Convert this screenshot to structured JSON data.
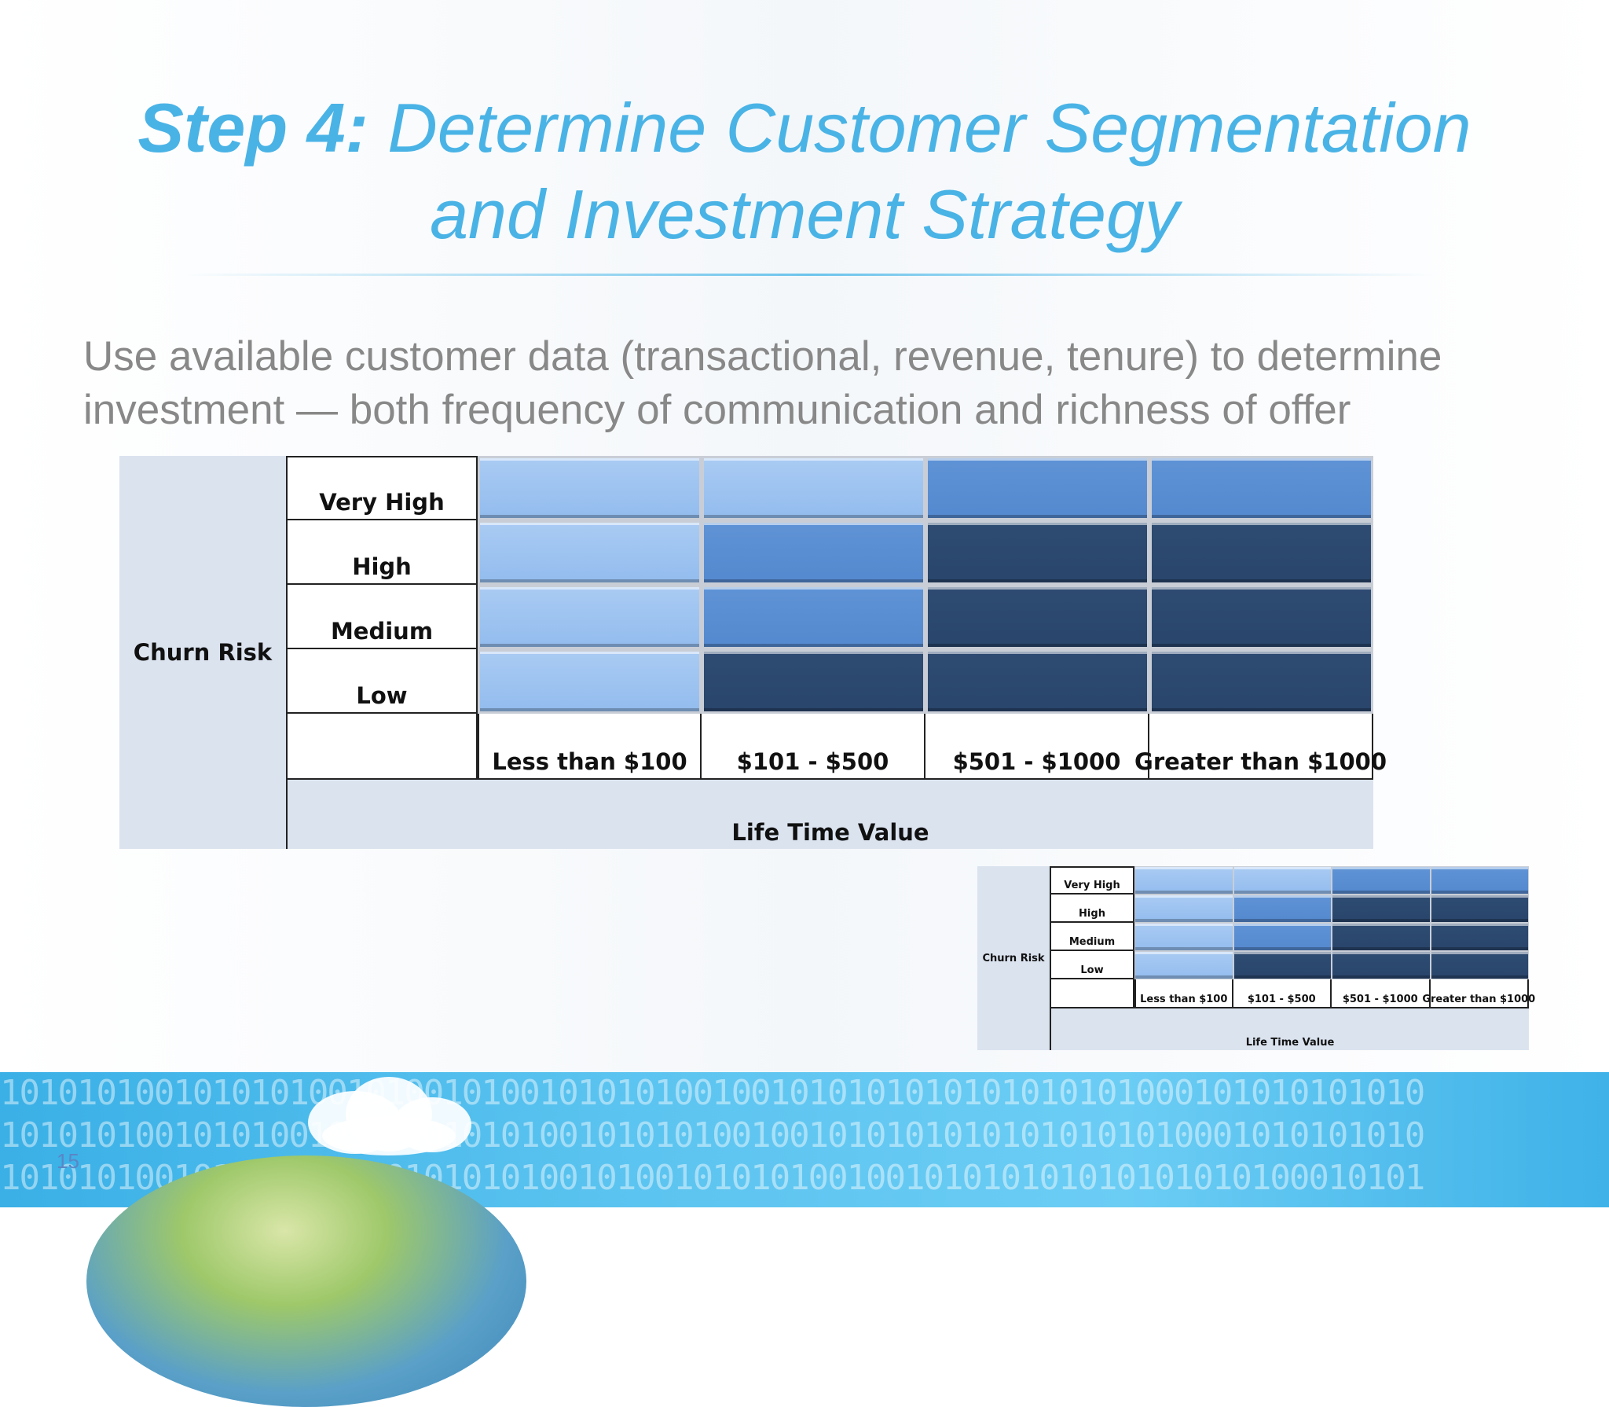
{
  "slide": {
    "title_step": "Step 4:",
    "title_rest_line1": "Determine Customer Segmentation",
    "title_line2": "and Investment Strategy",
    "body": "Use available customer data (transactional, revenue, tenure) to determine investment — both frequency of communication and richness of offer",
    "page_number": "15"
  },
  "matrix": {
    "row_axis_label": "Churn Risk",
    "rows": [
      "Very High",
      "High",
      "Medium",
      "Low"
    ],
    "col_axis_label": "Life Time Value",
    "columns": [
      "Less than $100",
      "$101 - $500",
      "$501 - $1000",
      "Greater than $1000"
    ],
    "cells": [
      [
        "light",
        "light",
        "mid",
        "mid"
      ],
      [
        "light",
        "mid",
        "dark",
        "dark"
      ],
      [
        "light",
        "mid",
        "dark",
        "dark"
      ],
      [
        "light",
        "dark",
        "dark",
        "dark"
      ]
    ],
    "colors": {
      "light": "#93bcee",
      "mid": "#5589cf",
      "dark": "#29456b",
      "band": "#dbe3ef"
    }
  },
  "banner": {
    "binary_lines": [
      "10101010010101010010100101001010101001001010101010101010101000101010101010",
      "10101010010101001010100101010010101010010010101010101010101010001010101010",
      "10101010010101001010010101010010100101010100100101010101010101010100010101"
    ]
  }
}
